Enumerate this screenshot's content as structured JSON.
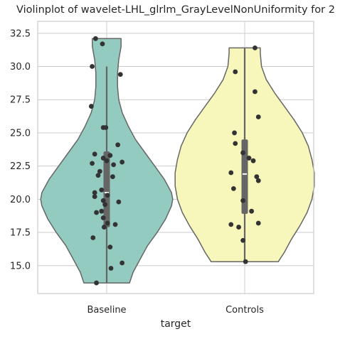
{
  "chart_data": {
    "type": "violin",
    "title": "Violinplot of wavelet-LHL_glrlm_GrayLevelNonUniformity for 2",
    "xlabel": "target",
    "ylabel": "",
    "categories": [
      "Baseline",
      "Controls"
    ],
    "ylim": [
      12.9,
      33.4
    ],
    "yticks": [
      15.0,
      17.5,
      20.0,
      22.5,
      25.0,
      27.5,
      30.0,
      32.5
    ],
    "ytick_labels": [
      "15.0",
      "17.5",
      "20.0",
      "22.5",
      "25.0",
      "27.5",
      "30.0",
      "32.5"
    ],
    "grid": true,
    "colors": {
      "Baseline": "#94cbc0",
      "Controls": "#f7f7bc",
      "outline": "#666666",
      "points": "#333333",
      "grid": "#cccccc",
      "box": "#666666"
    },
    "series": [
      {
        "name": "Baseline",
        "whisker": [
          13.7,
          30.0
        ],
        "quartiles": [
          17.9,
          20.5,
          23.6
        ],
        "median": 20.5,
        "points": [
          [
            -0.12,
            13.7
          ],
          [
            0.05,
            14.8
          ],
          [
            0.18,
            15.2
          ],
          [
            0.04,
            16.4
          ],
          [
            -0.16,
            17.1
          ],
          [
            -0.03,
            17.9
          ],
          [
            0.01,
            18.2
          ],
          [
            0.1,
            18.1
          ],
          [
            -0.04,
            18.6
          ],
          [
            -0.06,
            19.1
          ],
          [
            -0.02,
            19.6
          ],
          [
            -0.12,
            19.0
          ],
          [
            -0.04,
            19.9
          ],
          [
            0.01,
            20.3
          ],
          [
            0.14,
            19.8
          ],
          [
            -0.14,
            20.2
          ],
          [
            -0.14,
            20.5
          ],
          [
            -0.06,
            20.7
          ],
          [
            0.07,
            21.7
          ],
          [
            -0.1,
            21.8
          ],
          [
            -0.08,
            22.1
          ],
          [
            -0.17,
            22.7
          ],
          [
            0.08,
            22.6
          ],
          [
            0.18,
            22.8
          ],
          [
            0.0,
            22.9
          ],
          [
            -0.04,
            23.1
          ],
          [
            -0.14,
            23.4
          ],
          [
            0.04,
            23.3
          ],
          [
            0.13,
            24.1
          ],
          [
            -0.04,
            25.4
          ],
          [
            -0.01,
            25.4
          ],
          [
            -0.18,
            27.0
          ],
          [
            0.16,
            29.4
          ],
          [
            -0.17,
            30.0
          ],
          [
            -0.05,
            31.7
          ],
          [
            -0.13,
            32.1
          ]
        ]
      },
      {
        "name": "Controls",
        "whisker": [
          15.3,
          31.4
        ],
        "quartiles": [
          18.9,
          21.9,
          24.5
        ],
        "median": 21.9,
        "points": [
          [
            0.01,
            15.3
          ],
          [
            -0.02,
            16.9
          ],
          [
            -0.07,
            17.9
          ],
          [
            -0.16,
            18.1
          ],
          [
            0.16,
            18.2
          ],
          [
            0.08,
            19.1
          ],
          [
            -0.02,
            19.9
          ],
          [
            -0.13,
            20.8
          ],
          [
            0.16,
            21.4
          ],
          [
            0.14,
            21.7
          ],
          [
            -0.16,
            22.0
          ],
          [
            0.1,
            22.9
          ],
          [
            0.05,
            23.1
          ],
          [
            -0.02,
            23.5
          ],
          [
            -0.11,
            24.2
          ],
          [
            -0.12,
            25.0
          ],
          [
            0.16,
            26.2
          ],
          [
            0.12,
            28.1
          ],
          [
            -0.11,
            29.6
          ],
          [
            0.12,
            31.4
          ]
        ]
      }
    ],
    "violin_profiles": [
      {
        "name": "Baseline",
        "y": [
          13.7,
          14.5,
          15.5,
          16.5,
          17.5,
          18.5,
          19.5,
          20.0,
          20.5,
          21.5,
          22.5,
          23.5,
          24.5,
          25.5,
          26.5,
          27.5,
          28.5,
          29.5,
          30.5,
          31.5,
          32.1
        ],
        "width": [
          0.19,
          0.22,
          0.28,
          0.34,
          0.42,
          0.49,
          0.54,
          0.55,
          0.54,
          0.48,
          0.4,
          0.32,
          0.24,
          0.18,
          0.13,
          0.1,
          0.09,
          0.09,
          0.1,
          0.12,
          0.12
        ]
      },
      {
        "name": "Controls",
        "y": [
          15.3,
          16.0,
          17.0,
          18.0,
          19.0,
          20.0,
          21.0,
          22.0,
          23.0,
          24.0,
          25.0,
          26.0,
          27.0,
          28.0,
          29.0,
          30.0,
          31.0,
          31.4
        ],
        "width": [
          0.28,
          0.33,
          0.39,
          0.46,
          0.52,
          0.56,
          0.58,
          0.58,
          0.56,
          0.53,
          0.48,
          0.41,
          0.33,
          0.25,
          0.18,
          0.14,
          0.13,
          0.13
        ]
      }
    ]
  }
}
